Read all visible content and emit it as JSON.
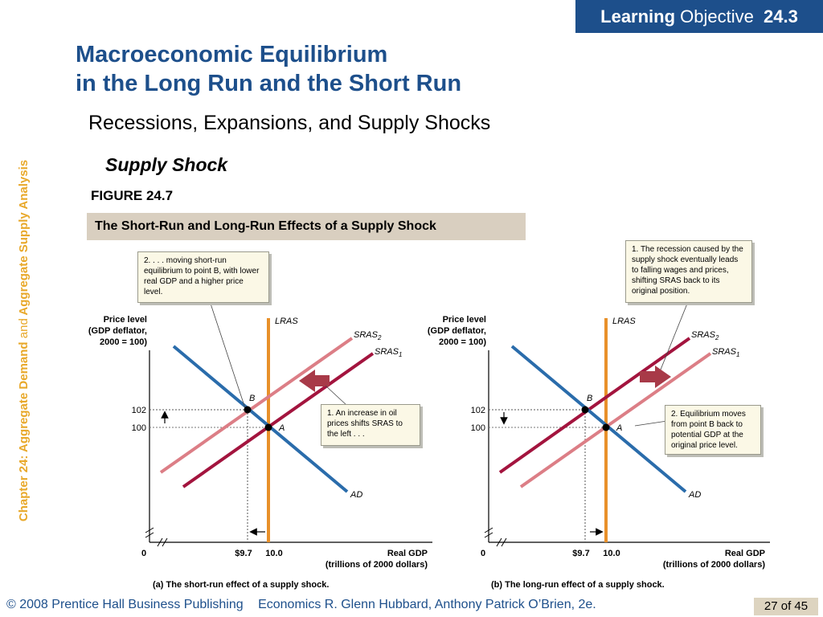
{
  "header": {
    "badge_strong": "Learning",
    "badge_word": "Objective",
    "badge_number": "24.3",
    "title_line1": "Macroeconomic Equilibrium",
    "title_line2": "in the Long Run and the Short Run",
    "subtitle": "Recessions, Expansions, and Supply Shocks",
    "section": "Supply Shock",
    "figure_label": "FIGURE 24.7",
    "figure_caption": "The Short-Run and Long-Run Effects of a Supply Shock"
  },
  "sidebar": {
    "chapter": "Chapter 24:",
    "part1": "Aggregate Demand",
    "and": "and",
    "part2": "Aggregate Supply Analysis"
  },
  "callouts": {
    "left_top": "2. . . . moving short-run equilibrium to point B, with lower real GDP and a higher price level.",
    "left_mid": "1.  An increase in oil prices shifts SRAS to the left . . .",
    "right_top": "1.  The recession caused by the supply shock eventually leads to falling wages and prices, shifting SRAS back to its original position.",
    "right_mid": "2. Equilibrium moves from point B back to potential GDP at the original price level."
  },
  "chart_data": [
    {
      "type": "line",
      "title": "(a) The short-run effect of a supply shock.",
      "ylabel": "Price level (GDP deflator, 2000 = 100)",
      "xlabel": "Real GDP (trillions of 2000 dollars)",
      "x_ticks": [
        "0",
        "$9.7",
        "10.0"
      ],
      "y_ticks": [
        "100",
        "102"
      ],
      "curves": [
        "LRAS",
        "SRAS2",
        "SRAS1",
        "AD"
      ],
      "points": [
        {
          "label": "A",
          "x": 10.0,
          "y": 100
        },
        {
          "label": "B",
          "x": 9.7,
          "y": 102
        }
      ]
    },
    {
      "type": "line",
      "title": "(b) The long-run effect of a supply shock.",
      "ylabel": "Price level (GDP deflator, 2000 = 100)",
      "xlabel": "Real GDP (trillions of 2000 dollars)",
      "x_ticks": [
        "0",
        "$9.7",
        "10.0"
      ],
      "y_ticks": [
        "100",
        "102"
      ],
      "curves": [
        "LRAS",
        "SRAS2",
        "SRAS1",
        "AD"
      ],
      "points": [
        {
          "label": "B",
          "x": 9.7,
          "y": 102
        },
        {
          "label": "A",
          "x": 10.0,
          "y": 100
        }
      ]
    }
  ],
  "colors": {
    "brand_blue": "#1d4f8b",
    "lras": "#e8902a",
    "sras_shifted": "#dc7e86",
    "sras_original": "#a3143e",
    "ad": "#2a6cab",
    "arrow": "#a83a48"
  },
  "footer": {
    "copyright": "© 2008 Prentice Hall Business Publishing",
    "book": "Economics",
    "authors": "R. Glenn Hubbard, Anthony Patrick O’Brien, 2e.",
    "page": "27 of 45"
  }
}
